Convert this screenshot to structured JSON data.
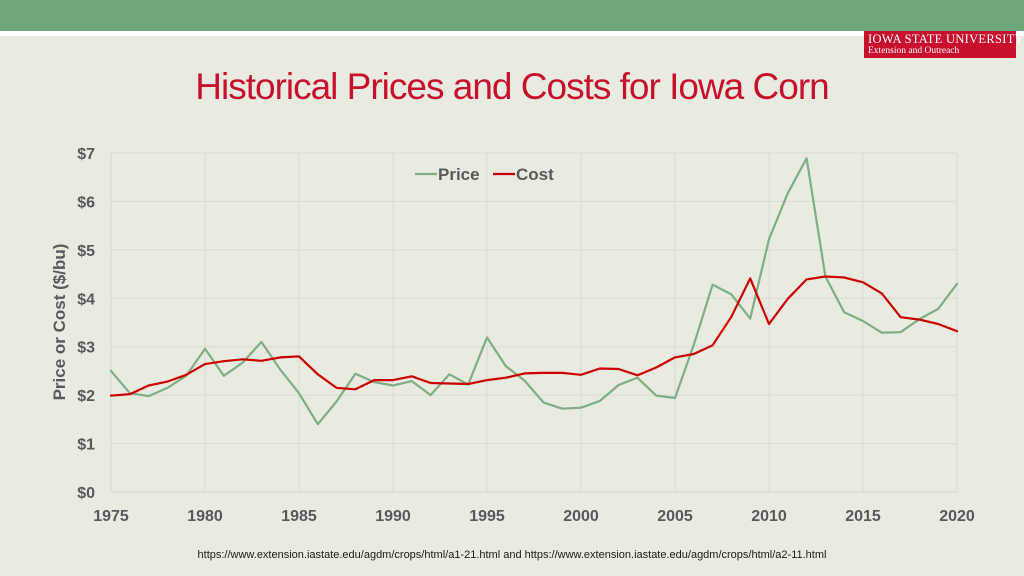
{
  "header": {
    "logo_name": "IOWA STATE UNIVERSITY",
    "logo_sub": "Extension and Outreach"
  },
  "title": "Historical Prices and Costs for Iowa Corn",
  "source": "https://www.extension.iastate.edu/agdm/crops/html/a1-21.html and https://www.extension.iastate.edu/agdm/crops/html/a2-11.html",
  "colors": {
    "price": "#7fad85",
    "cost": "#cc0000",
    "title": "#c8102e",
    "grid": "#d9d9d9"
  },
  "chart_data": {
    "type": "line",
    "title": "Historical Prices and Costs for Iowa Corn",
    "xlabel": "",
    "ylabel": "Price or Cost ($/bu)",
    "xlim": [
      1975,
      2020
    ],
    "ylim": [
      0,
      7
    ],
    "x_ticks": [
      "1975",
      "1980",
      "1985",
      "1990",
      "1995",
      "2000",
      "2005",
      "2010",
      "2015",
      "2020"
    ],
    "y_ticks": [
      "$0",
      "$1",
      "$2",
      "$3",
      "$4",
      "$5",
      "$6",
      "$7"
    ],
    "legend_position": "top-center",
    "grid": true,
    "x": [
      1975,
      1976,
      1977,
      1978,
      1979,
      1980,
      1981,
      1982,
      1983,
      1984,
      1985,
      1986,
      1987,
      1988,
      1989,
      1990,
      1991,
      1992,
      1993,
      1994,
      1995,
      1996,
      1997,
      1998,
      1999,
      2000,
      2001,
      2002,
      2003,
      2004,
      2005,
      2006,
      2007,
      2008,
      2009,
      2010,
      2011,
      2012,
      2013,
      2014,
      2015,
      2016,
      2017,
      2018,
      2019,
      2020
    ],
    "series": [
      {
        "name": "Price",
        "color": "#7fad85",
        "values": [
          2.5,
          2.04,
          1.98,
          2.15,
          2.4,
          2.96,
          2.4,
          2.67,
          3.1,
          2.53,
          2.04,
          1.4,
          1.87,
          2.44,
          2.27,
          2.2,
          2.29,
          2.0,
          2.43,
          2.22,
          3.19,
          2.6,
          2.3,
          1.85,
          1.72,
          1.74,
          1.88,
          2.21,
          2.36,
          1.99,
          1.94,
          3.04,
          4.28,
          4.08,
          3.58,
          5.22,
          6.17,
          6.89,
          4.45,
          3.71,
          3.53,
          3.29,
          3.3,
          3.57,
          3.78,
          4.3
        ]
      },
      {
        "name": "Cost",
        "color": "#cc0000",
        "values": [
          1.99,
          2.02,
          2.2,
          2.28,
          2.42,
          2.64,
          2.7,
          2.74,
          2.71,
          2.78,
          2.8,
          2.43,
          2.15,
          2.12,
          2.31,
          2.31,
          2.39,
          2.25,
          2.24,
          2.23,
          2.31,
          2.36,
          2.45,
          2.46,
          2.46,
          2.42,
          2.55,
          2.54,
          2.41,
          2.57,
          2.78,
          2.85,
          3.03,
          3.62,
          4.41,
          3.47,
          3.99,
          4.39,
          4.45,
          4.43,
          4.33,
          4.1,
          3.61,
          3.56,
          3.47,
          3.32
        ]
      }
    ]
  }
}
